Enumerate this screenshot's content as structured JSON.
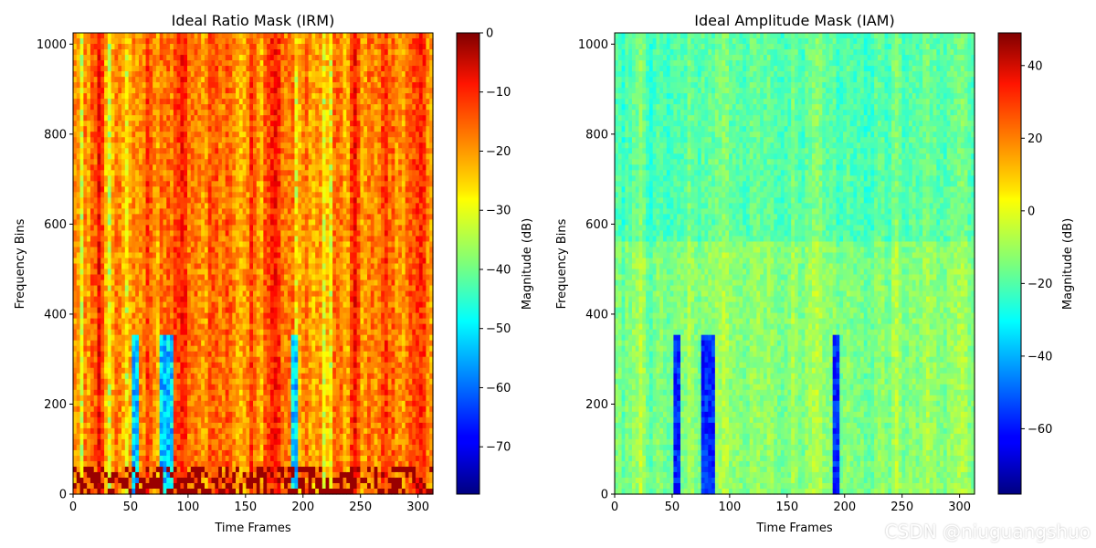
{
  "watermark": "CSDN @niuguangshuo",
  "chart_data": [
    {
      "type": "heatmap",
      "title": "Ideal Ratio Mask (IRM)",
      "xlabel": "Time Frames",
      "ylabel": "Frequency Bins",
      "xlim": [
        0,
        313
      ],
      "ylim": [
        0,
        1025
      ],
      "xticks": [
        "0",
        "50",
        "100",
        "150",
        "200",
        "250",
        "300"
      ],
      "xtick_values": [
        0,
        50,
        100,
        150,
        200,
        250,
        300
      ],
      "yticks": [
        "0",
        "200",
        "400",
        "600",
        "800",
        "1000"
      ],
      "ytick_values": [
        0,
        200,
        400,
        600,
        800,
        1000
      ],
      "colormap": "jet",
      "colorbar": {
        "label": "Magnitude (dB)",
        "range": [
          -78,
          0
        ],
        "ticks": [
          "0",
          "−10",
          "−20",
          "−30",
          "−40",
          "−50",
          "−60",
          "−70"
        ],
        "tick_values": [
          0,
          -10,
          -20,
          -30,
          -40,
          -50,
          -60,
          -70
        ]
      }
    },
    {
      "type": "heatmap",
      "title": "Ideal Amplitude Mask (IAM)",
      "xlabel": "Time Frames",
      "ylabel": "Frequency Bins",
      "xlim": [
        0,
        313
      ],
      "ylim": [
        0,
        1025
      ],
      "xticks": [
        "0",
        "50",
        "100",
        "150",
        "200",
        "250",
        "300"
      ],
      "xtick_values": [
        0,
        50,
        100,
        150,
        200,
        250,
        300
      ],
      "yticks": [
        "0",
        "200",
        "400",
        "600",
        "800",
        "1000"
      ],
      "ytick_values": [
        0,
        200,
        400,
        600,
        800,
        1000
      ],
      "colormap": "jet",
      "colorbar": {
        "label": "Magnitude (dB)",
        "range": [
          -78,
          49
        ],
        "ticks": [
          "40",
          "20",
          "0",
          "−20",
          "−40",
          "−60"
        ],
        "tick_values": [
          40,
          20,
          0,
          -20,
          -40,
          -60
        ]
      }
    }
  ]
}
